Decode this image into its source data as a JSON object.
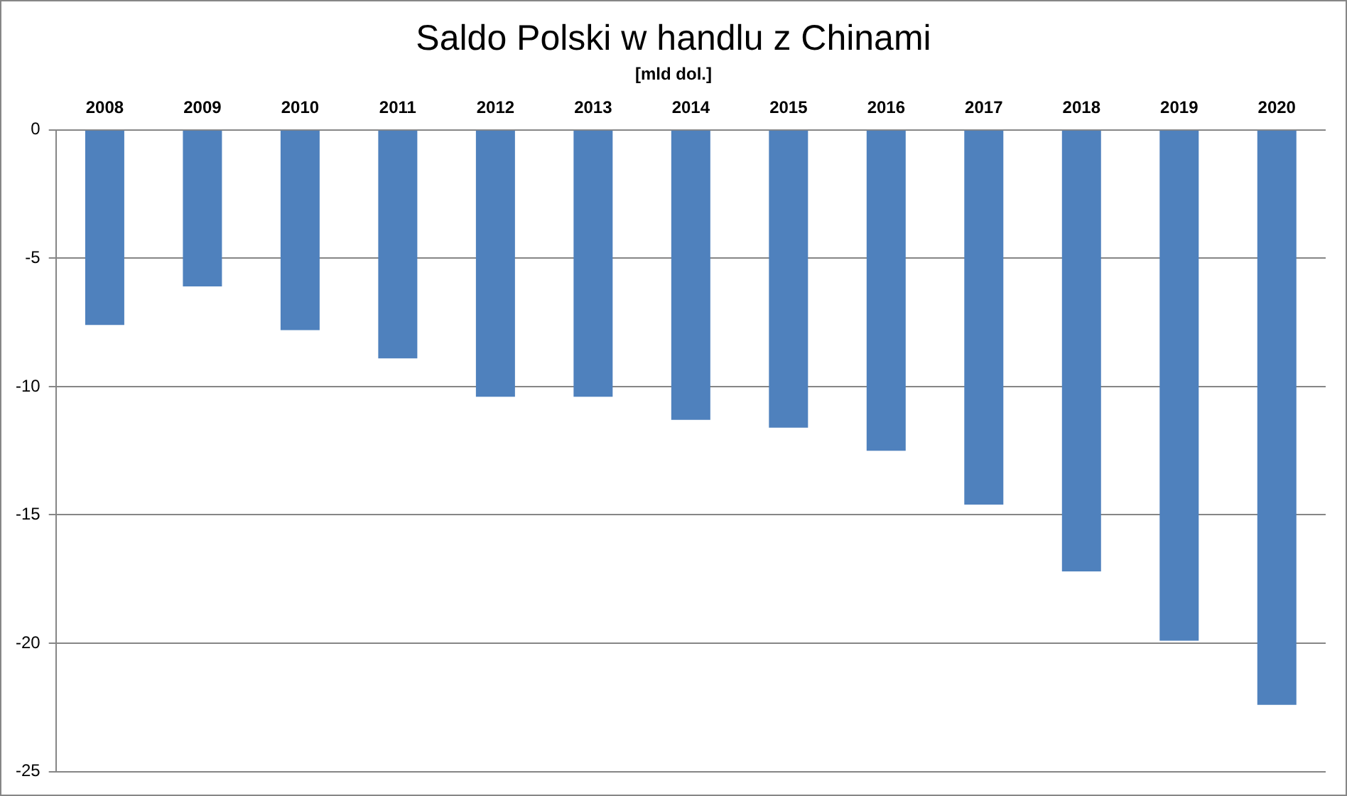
{
  "chart_data": {
    "type": "bar",
    "title": "Saldo Polski w handlu z Chinami",
    "subtitle": "[mld dol.]",
    "categories": [
      "2008",
      "2009",
      "2010",
      "2011",
      "2012",
      "2013",
      "2014",
      "2015",
      "2016",
      "2017",
      "2018",
      "2019",
      "2020"
    ],
    "values": [
      -7.6,
      -6.1,
      -7.8,
      -8.9,
      -10.4,
      -10.4,
      -11.3,
      -11.6,
      -12.5,
      -14.6,
      -17.2,
      -19.9,
      -22.4
    ],
    "color": "#4f81bd",
    "ylim": [
      -25,
      0
    ],
    "yticks": [
      0,
      -5,
      -10,
      -15,
      -20,
      -25
    ],
    "grid": "y",
    "legend": false
  }
}
